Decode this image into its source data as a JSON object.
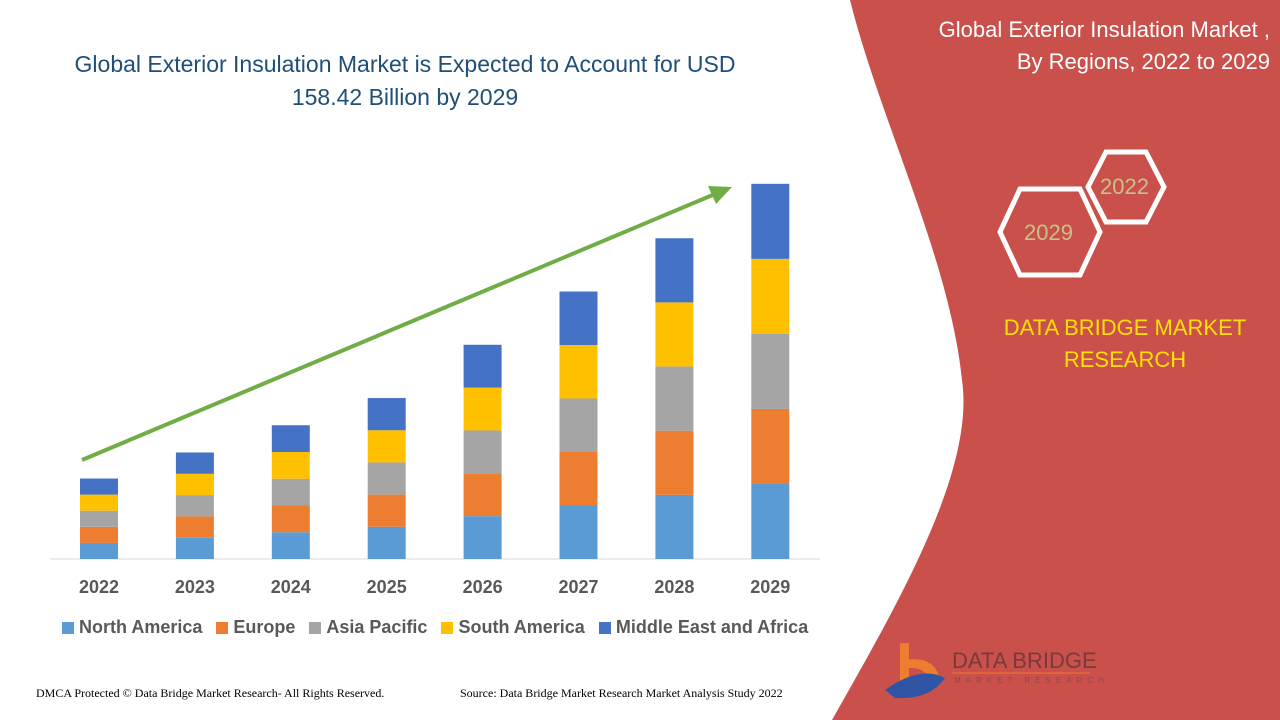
{
  "title": "Global Exterior Insulation Market is Expected to Account for USD 158.42 Billion by 2029",
  "side_panel": {
    "title_line1": "Global Exterior Insulation Market    ,",
    "title_line2": "By Regions, 2022 to 2029",
    "hex_years": [
      "2022",
      "2029"
    ],
    "brand_line1": "DATA BRIDGE MARKET",
    "brand_line2": "RESEARCH",
    "logo_text": "DATA BRIDGE",
    "logo_subtext": "MARKET RESEARCH",
    "panel_color": "#C9504B"
  },
  "footer": {
    "left": "DMCA Protected © Data Bridge Market Research- All Rights Reserved.",
    "right": "Source: Data Bridge Market Research Market Analysis Study 2022"
  },
  "chart_data": {
    "type": "bar",
    "stacked": true,
    "categories": [
      "2022",
      "2023",
      "2024",
      "2025",
      "2026",
      "2027",
      "2028",
      "2029"
    ],
    "series": [
      {
        "name": "North America",
        "color": "#5B9BD5",
        "values": [
          6.8,
          9.0,
          11.3,
          13.6,
          18.1,
          22.6,
          27.1,
          31.7
        ]
      },
      {
        "name": "Europe",
        "color": "#ED7D31",
        "values": [
          6.8,
          9.0,
          11.3,
          13.6,
          18.1,
          22.6,
          27.1,
          31.7
        ]
      },
      {
        "name": "Asia Pacific",
        "color": "#A5A5A5",
        "values": [
          6.8,
          9.0,
          11.3,
          13.6,
          18.1,
          22.6,
          27.1,
          31.7
        ]
      },
      {
        "name": "South America",
        "color": "#FFC000",
        "values": [
          6.8,
          9.0,
          11.3,
          13.6,
          18.1,
          22.6,
          27.1,
          31.7
        ]
      },
      {
        "name": "Middle East and Africa",
        "color": "#4472C4",
        "values": [
          6.8,
          9.0,
          11.3,
          13.6,
          18.1,
          22.6,
          27.1,
          31.7
        ]
      }
    ],
    "ylim": [
      0,
      158.42
    ],
    "grid": false,
    "legend_position": "bottom",
    "trend_arrow_color": "#70AD47"
  }
}
